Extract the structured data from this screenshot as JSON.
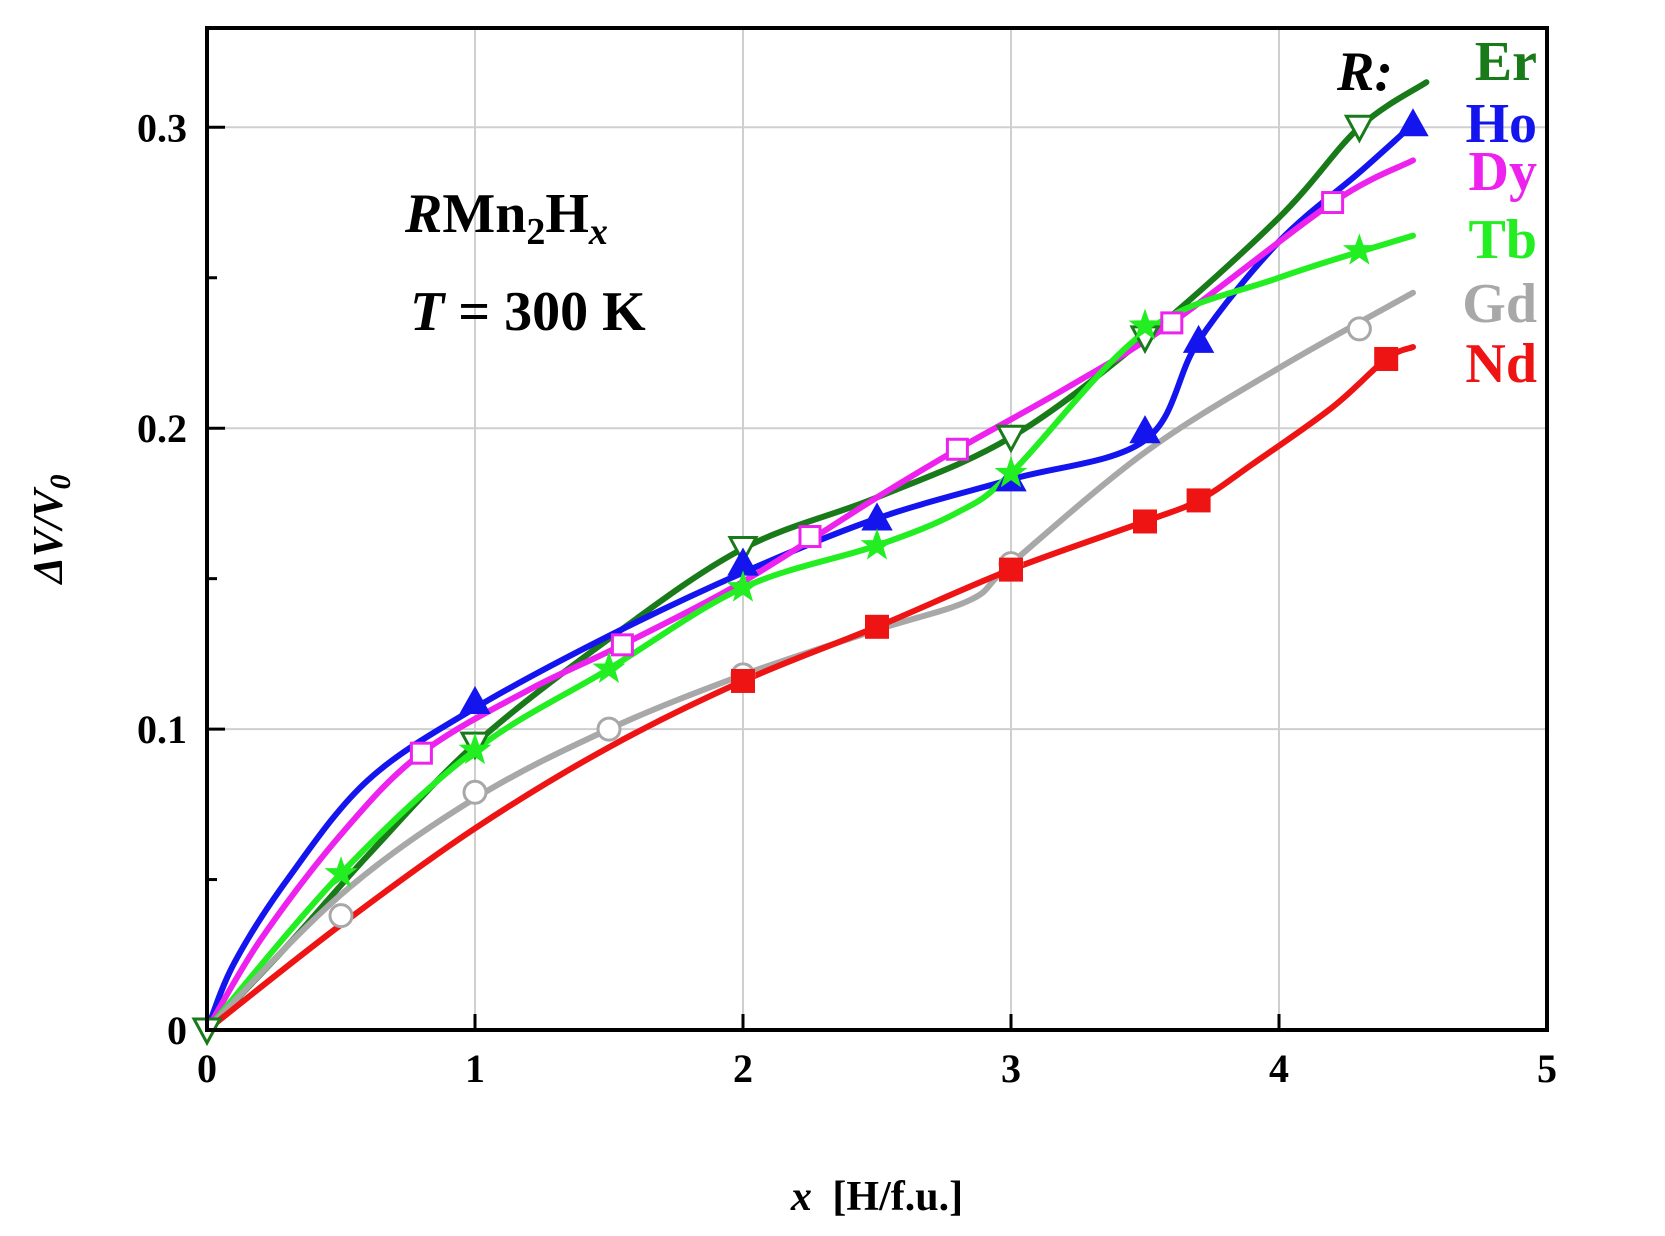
{
  "chart_data": {
    "type": "line",
    "xlabel_var": "x",
    "xlabel_unit": "[H/f.u.]",
    "ylabel_main": "ΔV/V",
    "ylabel_sub": "0",
    "xlim": [
      0,
      5
    ],
    "ylim": [
      0,
      0.333
    ],
    "grid": true,
    "x_ticks": [
      {
        "value": 0,
        "label": "0"
      },
      {
        "value": 1,
        "label": "1"
      },
      {
        "value": 2,
        "label": "2"
      },
      {
        "value": 3,
        "label": "3"
      },
      {
        "value": 4,
        "label": "4"
      },
      {
        "value": 5,
        "label": "5"
      }
    ],
    "y_ticks": [
      {
        "value": 0,
        "label": "0"
      },
      {
        "value": 0.1,
        "label": "0.1"
      },
      {
        "value": 0.2,
        "label": "0.2"
      },
      {
        "value": 0.3,
        "label": "0.3"
      }
    ],
    "y_minor_ticks": [
      0.05,
      0.15,
      0.25
    ],
    "annotation": {
      "formula_italic": "R",
      "formula_mn": "Mn",
      "formula_sub": "2",
      "formula_h": "H",
      "formula_x": "x",
      "temp_var": "T",
      "temp_value": " = 300 K"
    },
    "legend_title": "R:",
    "series": [
      {
        "name": "Er",
        "color": "#187a18",
        "marker": "triangle-down-open",
        "points": [
          [
            0,
            0
          ],
          [
            1,
            0.095
          ],
          [
            2,
            0.16
          ],
          [
            3,
            0.197
          ],
          [
            3.5,
            0.23
          ],
          [
            4.3,
            0.3
          ]
        ],
        "curve": [
          [
            0,
            0
          ],
          [
            0.3,
            0.028
          ],
          [
            0.6,
            0.058
          ],
          [
            1,
            0.095
          ],
          [
            1.5,
            0.13
          ],
          [
            2,
            0.16
          ],
          [
            2.5,
            0.177
          ],
          [
            3,
            0.197
          ],
          [
            3.5,
            0.23
          ],
          [
            4,
            0.27
          ],
          [
            4.3,
            0.3
          ],
          [
            4.55,
            0.315
          ]
        ]
      },
      {
        "name": "Ho",
        "color": "#1414ee",
        "marker": "triangle-up-filled",
        "points": [
          [
            1,
            0.109
          ],
          [
            2,
            0.155
          ],
          [
            2.5,
            0.17
          ],
          [
            3,
            0.183
          ],
          [
            3.5,
            0.199
          ],
          [
            3.7,
            0.229
          ],
          [
            4.5,
            0.301
          ]
        ],
        "curve": [
          [
            0,
            0
          ],
          [
            0.1,
            0.022
          ],
          [
            0.3,
            0.05
          ],
          [
            0.6,
            0.083
          ],
          [
            1,
            0.107
          ],
          [
            1.5,
            0.131
          ],
          [
            2,
            0.152
          ],
          [
            2.5,
            0.17
          ],
          [
            3,
            0.183
          ],
          [
            3.5,
            0.196
          ],
          [
            3.7,
            0.229
          ],
          [
            4,
            0.262
          ],
          [
            4.3,
            0.285
          ],
          [
            4.5,
            0.301
          ]
        ]
      },
      {
        "name": "Dy",
        "color": "#ee22ee",
        "marker": "square-open",
        "points": [
          [
            0.8,
            0.092
          ],
          [
            1.55,
            0.128
          ],
          [
            2.25,
            0.164
          ],
          [
            2.8,
            0.193
          ],
          [
            3.6,
            0.235
          ],
          [
            4.2,
            0.275
          ]
        ],
        "curve": [
          [
            0,
            0
          ],
          [
            0.2,
            0.03
          ],
          [
            0.5,
            0.065
          ],
          [
            0.8,
            0.092
          ],
          [
            1.2,
            0.113
          ],
          [
            1.55,
            0.128
          ],
          [
            2,
            0.149
          ],
          [
            2.5,
            0.177
          ],
          [
            2.8,
            0.193
          ],
          [
            3.2,
            0.213
          ],
          [
            3.6,
            0.235
          ],
          [
            4.2,
            0.275
          ],
          [
            4.5,
            0.289
          ]
        ]
      },
      {
        "name": "Tb",
        "color": "#22ee22",
        "marker": "star-filled",
        "points": [
          [
            0.5,
            0.052
          ],
          [
            1,
            0.093
          ],
          [
            1.5,
            0.12
          ],
          [
            2,
            0.147
          ],
          [
            2.5,
            0.161
          ],
          [
            3,
            0.185
          ],
          [
            3.5,
            0.234
          ],
          [
            4.3,
            0.259
          ]
        ],
        "curve": [
          [
            0,
            0
          ],
          [
            0.5,
            0.052
          ],
          [
            1,
            0.093
          ],
          [
            1.5,
            0.12
          ],
          [
            2,
            0.147
          ],
          [
            2.5,
            0.161
          ],
          [
            2.8,
            0.172
          ],
          [
            3,
            0.185
          ],
          [
            3.5,
            0.232
          ],
          [
            4,
            0.25
          ],
          [
            4.5,
            0.264
          ]
        ]
      },
      {
        "name": "Gd",
        "color": "#a8a8a8",
        "marker": "circle-open",
        "points": [
          [
            0.5,
            0.038
          ],
          [
            1,
            0.079
          ],
          [
            1.5,
            0.1
          ],
          [
            2,
            0.118
          ],
          [
            3,
            0.155
          ],
          [
            4.3,
            0.233
          ]
        ],
        "curve": [
          [
            0,
            0
          ],
          [
            0.5,
            0.045
          ],
          [
            1,
            0.077
          ],
          [
            1.5,
            0.1
          ],
          [
            2,
            0.118
          ],
          [
            2.5,
            0.133
          ],
          [
            2.85,
            0.143
          ],
          [
            3,
            0.155
          ],
          [
            3.5,
            0.192
          ],
          [
            4,
            0.22
          ],
          [
            4.5,
            0.245
          ]
        ]
      },
      {
        "name": "Nd",
        "color": "#ee1414",
        "marker": "square-filled",
        "points": [
          [
            2,
            0.116
          ],
          [
            2.5,
            0.134
          ],
          [
            3,
            0.153
          ],
          [
            3.5,
            0.169
          ],
          [
            3.7,
            0.176
          ],
          [
            4.4,
            0.223
          ]
        ],
        "curve": [
          [
            0,
            0
          ],
          [
            0.5,
            0.035
          ],
          [
            1,
            0.067
          ],
          [
            1.5,
            0.094
          ],
          [
            2,
            0.116
          ],
          [
            2.5,
            0.134
          ],
          [
            3,
            0.153
          ],
          [
            3.5,
            0.169
          ],
          [
            3.7,
            0.176
          ],
          [
            3.9,
            0.188
          ],
          [
            4.2,
            0.207
          ],
          [
            4.4,
            0.223
          ],
          [
            4.5,
            0.227
          ]
        ]
      }
    ]
  }
}
